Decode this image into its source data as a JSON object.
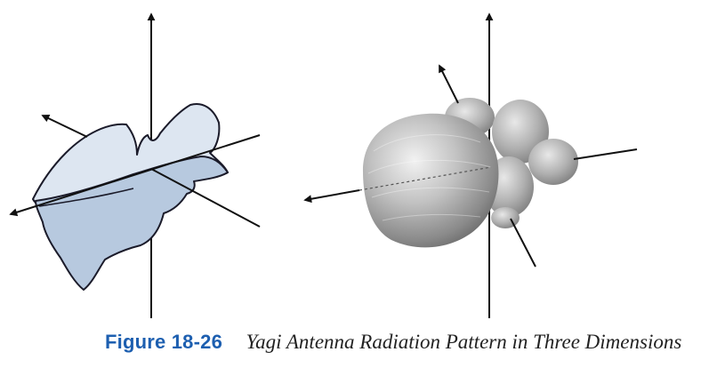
{
  "caption": {
    "number": "Figure 18-26",
    "text": "Yagi Antenna Radiation Pattern in Three Dimensions"
  },
  "colors": {
    "caption_number": "#1d5fb0",
    "axis_line": "#111111",
    "left_pattern_upper_fill": "#dde6f1",
    "left_pattern_lower_fill": "#b7c9df",
    "left_pattern_outline": "#1b1b2a",
    "right_pattern_shading": "#8e8e8e"
  },
  "figure": {
    "left_panel": "wireframe-style radiation pattern with three axes",
    "right_panel": "shaded 3D radiation pattern with three axes"
  }
}
